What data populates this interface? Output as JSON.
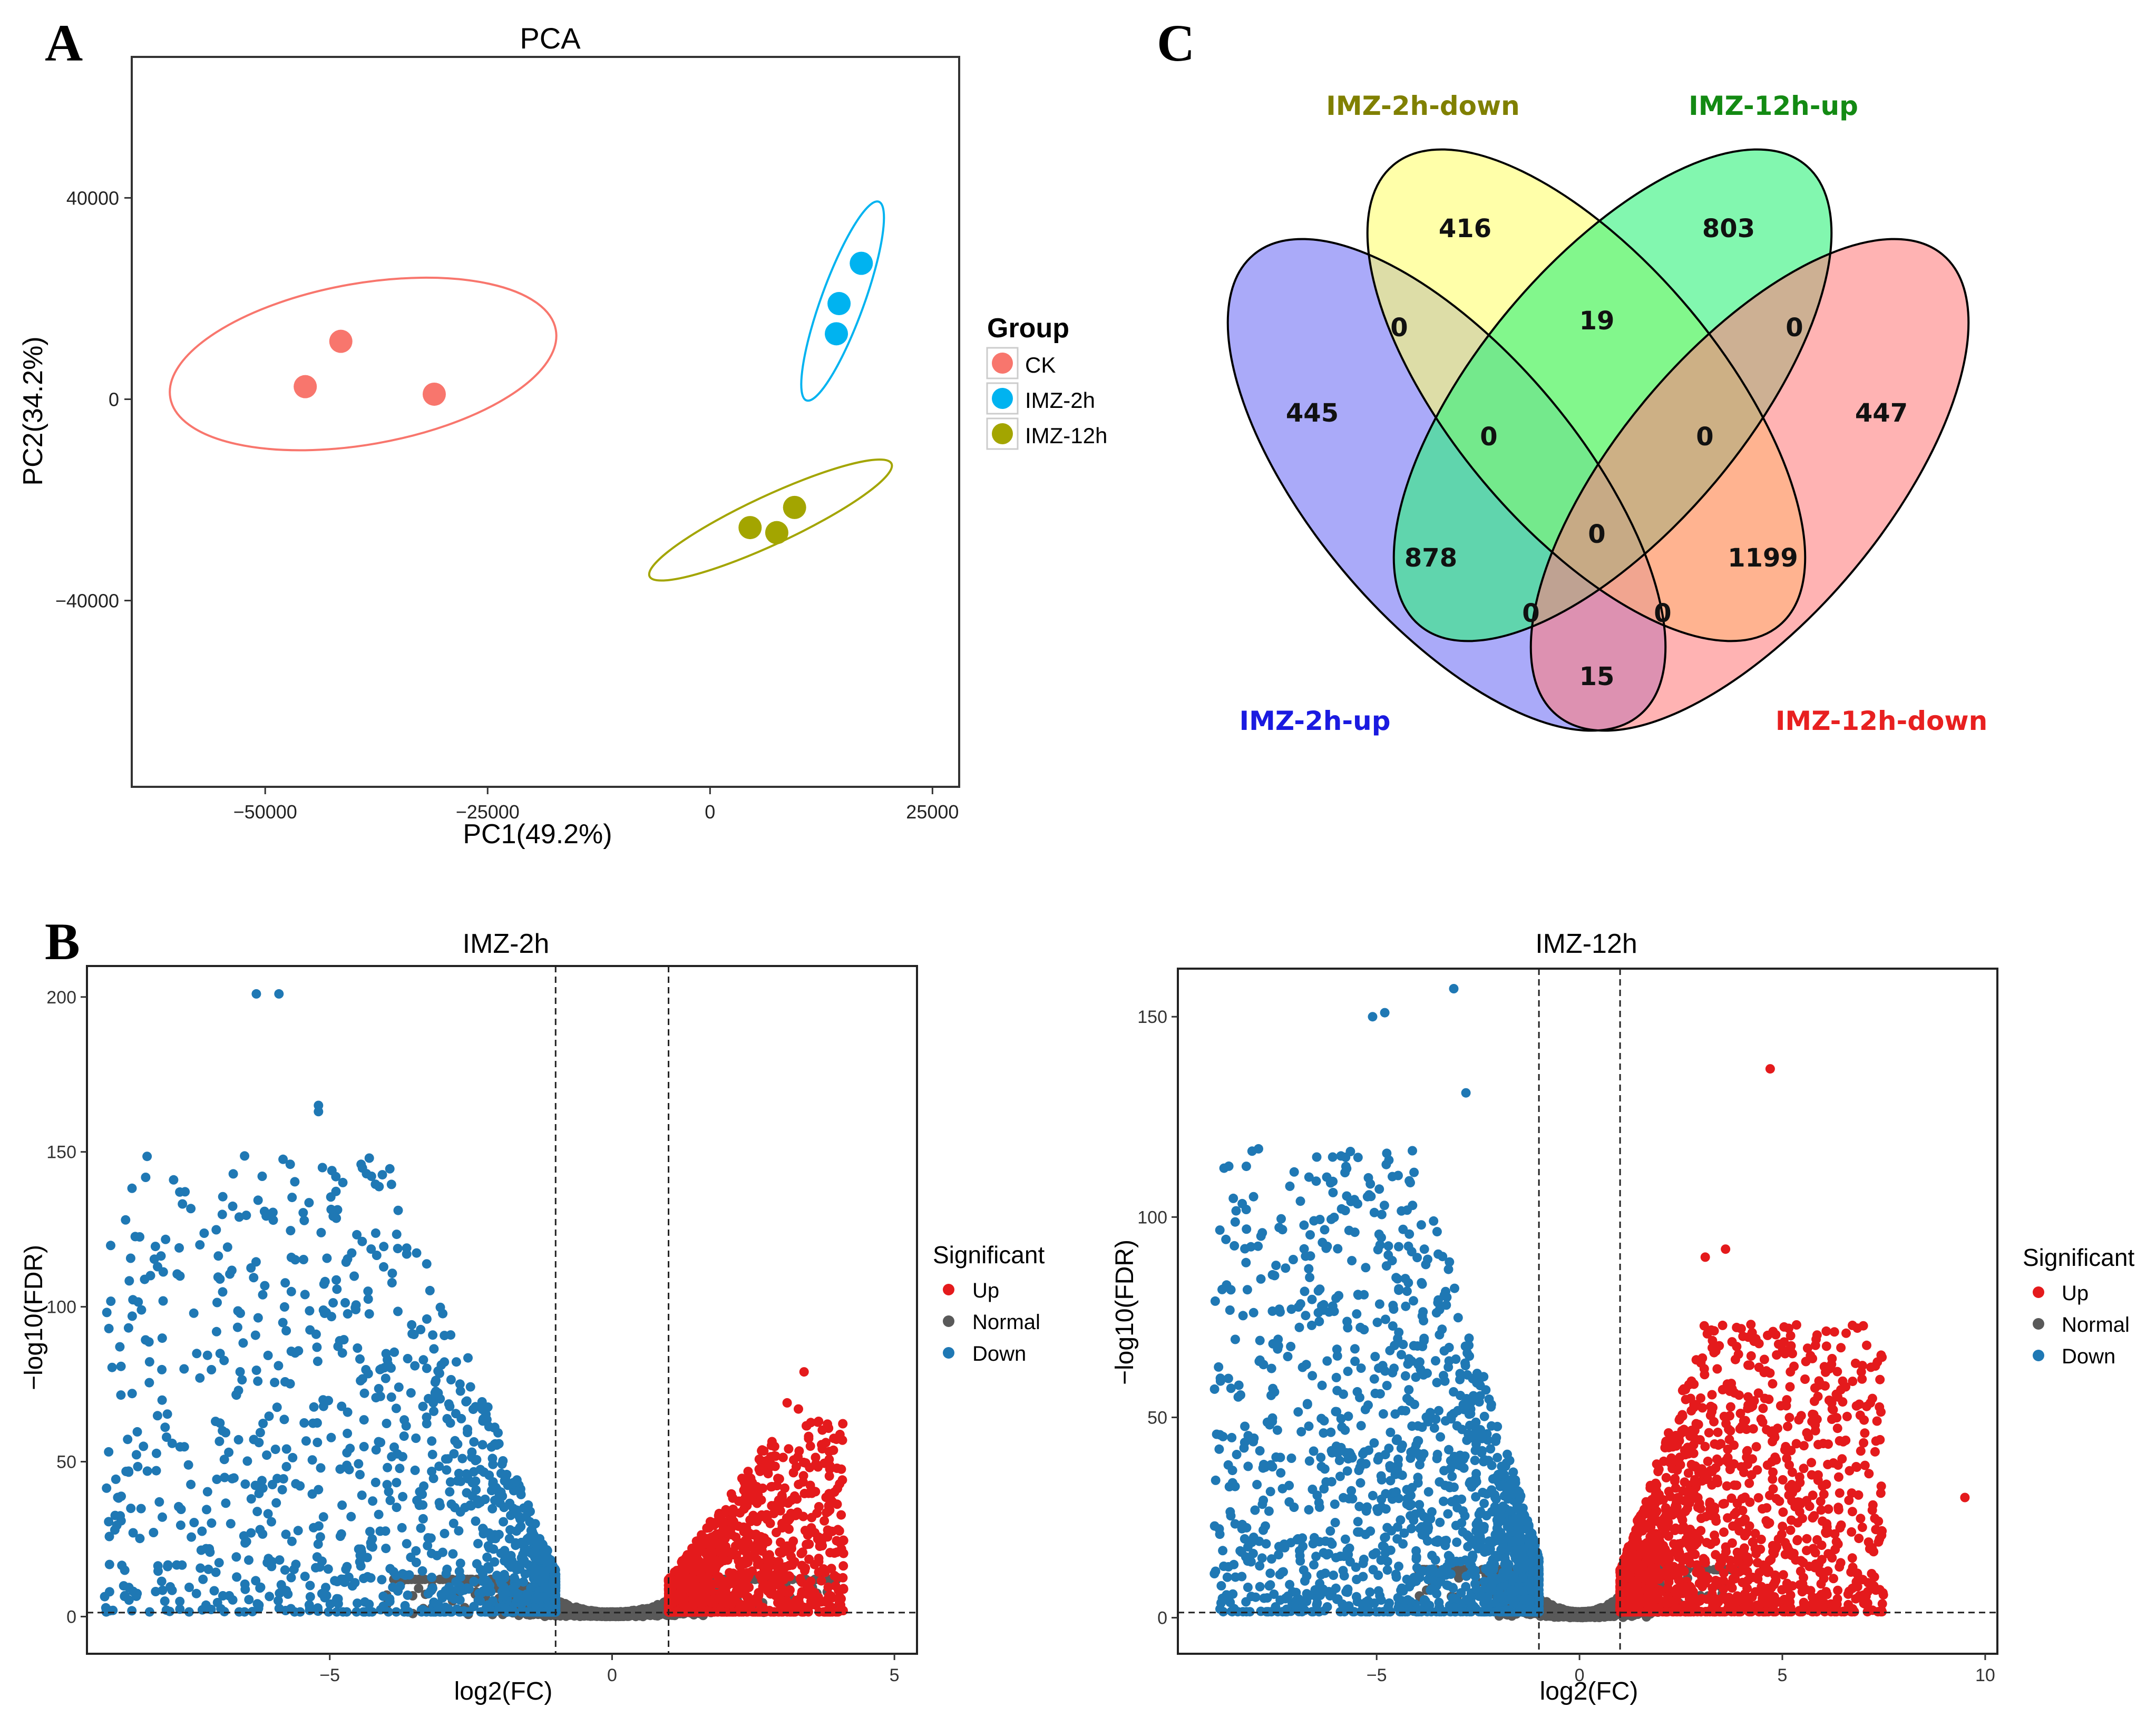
{
  "panels": [
    {
      "label": "A"
    },
    {
      "label": "B"
    },
    {
      "label": "C"
    }
  ],
  "chart_data": [
    {
      "panel": "A",
      "type": "scatter",
      "title": "PCA",
      "xlabel": "PC1(49.2%)",
      "ylabel": "PC2(34.2%)",
      "xlim": [
        -65000,
        28000
      ],
      "ylim": [
        -77000,
        68000
      ],
      "xticks": [
        -50000,
        -25000,
        0,
        25000
      ],
      "yticks": [
        -40000,
        0,
        40000
      ],
      "xtick_labels": [
        "−50000",
        "−25000",
        "0",
        "25000"
      ],
      "ytick_labels": [
        "−40000",
        "0",
        "40000"
      ],
      "legend_title": "Group",
      "legend_position": "right",
      "series": [
        {
          "name": "CK",
          "color": "#F8766D",
          "points": [
            [
              -45500,
              2500
            ],
            [
              -41500,
              11500
            ],
            [
              -31000,
              1000
            ]
          ],
          "ellipse": {
            "cx": -39000,
            "cy": 7000,
            "rx": 22000,
            "ry": 16000,
            "angle_deg": -10
          }
        },
        {
          "name": "IMZ-2h",
          "color": "#00B3F0",
          "points": [
            [
              14500,
              19000
            ],
            [
              14200,
              13000
            ],
            [
              17000,
              27000
            ]
          ],
          "ellipse": {
            "cx": 14900,
            "cy": 19500,
            "rx": 2400,
            "ry": 21000,
            "angle_deg": 20
          }
        },
        {
          "name": "IMZ-12h",
          "color": "#A3A500",
          "points": [
            [
              4500,
              -25500
            ],
            [
              7500,
              -26500
            ],
            [
              9500,
              -21500
            ]
          ],
          "ellipse": {
            "cx": 6800,
            "cy": -24000,
            "rx": 15000,
            "ry": 4800,
            "angle_deg": -25
          }
        }
      ]
    },
    {
      "panel": "B",
      "type": "scatter",
      "title": "IMZ-2h",
      "xlabel": "log2(FC)",
      "ylabel": "−log10(FDR)",
      "xlim": [
        -9.3,
        5.4
      ],
      "ylim": [
        -12,
        210
      ],
      "xticks": [
        -5,
        0,
        5
      ],
      "yticks": [
        0,
        50,
        100,
        150,
        200
      ],
      "xtick_labels": [
        "−5",
        "0",
        "5"
      ],
      "ytick_labels": [
        "0",
        "50",
        "100",
        "150",
        "200"
      ],
      "vlines": [
        -1,
        1
      ],
      "hline": 1.3,
      "legend_title": "Significant",
      "legend_position": "right",
      "legend": [
        {
          "name": "Up",
          "color": "#E41A1C"
        },
        {
          "name": "Normal",
          "color": "#595959"
        },
        {
          "name": "Down",
          "color": "#1F78B4"
        }
      ],
      "up": {
        "count": 1200,
        "x_range": [
          1,
          4.1
        ],
        "y_max": 79,
        "seed": 11
      },
      "down": {
        "count": 1340,
        "x_range": [
          -9,
          -1
        ],
        "y_max": 201,
        "seed": 17
      },
      "normal": {
        "count": 1700,
        "seed": 23
      },
      "highlights": [
        {
          "x": -6.3,
          "y": 201,
          "s": "Down"
        },
        {
          "x": -5.9,
          "y": 201,
          "s": "Down"
        },
        {
          "x": -5.2,
          "y": 165,
          "s": "Down"
        },
        {
          "x": -5.2,
          "y": 163,
          "s": "Down"
        },
        {
          "x": -5.7,
          "y": 146,
          "s": "Down"
        },
        {
          "x": -4.3,
          "y": 148,
          "s": "Down"
        },
        {
          "x": -7.3,
          "y": 120,
          "s": "Down"
        },
        {
          "x": -8.5,
          "y": 72,
          "s": "Down"
        },
        {
          "x": -8.9,
          "y": 8,
          "s": "Down"
        },
        {
          "x": -7.3,
          "y": 77,
          "s": "Down"
        },
        {
          "x": -6.9,
          "y": 60,
          "s": "Down"
        },
        {
          "x": 3.4,
          "y": 79,
          "s": "Up"
        },
        {
          "x": 3.1,
          "y": 69,
          "s": "Up"
        },
        {
          "x": 3.3,
          "y": 67,
          "s": "Up"
        }
      ]
    },
    {
      "panel": "B",
      "type": "scatter",
      "title": "IMZ-12h",
      "xlabel": "log2(FC)",
      "ylabel": "−log10(FDR)",
      "xlim": [
        -9.9,
        10.3
      ],
      "ylim": [
        -9,
        162
      ],
      "xticks": [
        -5,
        0,
        5,
        10
      ],
      "yticks": [
        0,
        50,
        100,
        150
      ],
      "xtick_labels": [
        "−5",
        "0",
        "5",
        "10"
      ],
      "ytick_labels": [
        "0",
        "50",
        "100",
        "150"
      ],
      "vlines": [
        -1,
        1
      ],
      "hline": 1.3,
      "legend_title": "Significant",
      "legend_position": "right",
      "legend": [
        {
          "name": "Up",
          "color": "#E41A1C"
        },
        {
          "name": "Normal",
          "color": "#595959"
        },
        {
          "name": "Down",
          "color": "#1F78B4"
        }
      ],
      "up": {
        "count": 1650,
        "x_range": [
          1,
          7.5
        ],
        "y_max": 92,
        "seed": 31
      },
      "down": {
        "count": 1750,
        "x_range": [
          -9,
          -1
        ],
        "y_max": 157,
        "seed": 37
      },
      "normal": {
        "count": 1800,
        "seed": 41
      },
      "highlights": [
        {
          "x": -3.1,
          "y": 157,
          "s": "Down"
        },
        {
          "x": -5.1,
          "y": 150,
          "s": "Down"
        },
        {
          "x": -4.8,
          "y": 151,
          "s": "Down"
        },
        {
          "x": -2.8,
          "y": 131,
          "s": "Down"
        },
        {
          "x": -9.0,
          "y": 11,
          "s": "Down"
        },
        {
          "x": -7.4,
          "y": 77,
          "s": "Down"
        },
        {
          "x": -7.1,
          "y": 77,
          "s": "Down"
        },
        {
          "x": -6.4,
          "y": 82,
          "s": "Down"
        },
        {
          "x": 4.7,
          "y": 137,
          "s": "Up"
        },
        {
          "x": 9.5,
          "y": 30,
          "s": "Up"
        },
        {
          "x": 7.2,
          "y": 11,
          "s": "Up"
        },
        {
          "x": 7.4,
          "y": 7,
          "s": "Up"
        },
        {
          "x": 3.6,
          "y": 92,
          "s": "Up"
        },
        {
          "x": 3.1,
          "y": 90,
          "s": "Up"
        }
      ]
    },
    {
      "panel": "C",
      "type": "venn",
      "sets": [
        {
          "name": "IMZ-2h-up",
          "fill": "#7272F5",
          "label_color": "#1A1AE0"
        },
        {
          "name": "IMZ-2h-down",
          "fill": "#FFFF70",
          "label_color": "#808000"
        },
        {
          "name": "IMZ-12h-up",
          "fill": "#2EF27A",
          "label_color": "#138A13"
        },
        {
          "name": "IMZ-12h-down",
          "fill": "#FF8080",
          "label_color": "#E82020"
        }
      ],
      "regions": [
        {
          "sets": [
            "IMZ-2h-down"
          ],
          "value": 416
        },
        {
          "sets": [
            "IMZ-12h-up"
          ],
          "value": 803
        },
        {
          "sets": [
            "IMZ-2h-up"
          ],
          "value": 445
        },
        {
          "sets": [
            "IMZ-12h-down"
          ],
          "value": 447
        },
        {
          "sets": [
            "IMZ-2h-up",
            "IMZ-2h-down"
          ],
          "value": 0
        },
        {
          "sets": [
            "IMZ-2h-down",
            "IMZ-12h-up"
          ],
          "value": 19
        },
        {
          "sets": [
            "IMZ-12h-up",
            "IMZ-12h-down"
          ],
          "value": 0
        },
        {
          "sets": [
            "IMZ-2h-up",
            "IMZ-2h-down",
            "IMZ-12h-up"
          ],
          "value": 0
        },
        {
          "sets": [
            "IMZ-2h-down",
            "IMZ-12h-up",
            "IMZ-12h-down"
          ],
          "value": 0
        },
        {
          "sets": [
            "IMZ-2h-up",
            "IMZ-12h-up"
          ],
          "value": 878
        },
        {
          "sets": [
            "IMZ-2h-up",
            "IMZ-2h-down",
            "IMZ-12h-up",
            "IMZ-12h-down"
          ],
          "value": 0
        },
        {
          "sets": [
            "IMZ-2h-down",
            "IMZ-12h-down"
          ],
          "value": 1199
        },
        {
          "sets": [
            "IMZ-2h-up",
            "IMZ-12h-up",
            "IMZ-12h-down"
          ],
          "value": 0
        },
        {
          "sets": [
            "IMZ-2h-up",
            "IMZ-2h-down",
            "IMZ-12h-down"
          ],
          "value": 0
        },
        {
          "sets": [
            "IMZ-2h-up",
            "IMZ-12h-down"
          ],
          "value": 15
        }
      ]
    }
  ]
}
